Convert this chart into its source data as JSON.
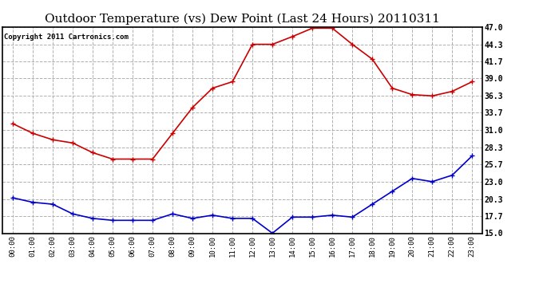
{
  "title": "Outdoor Temperature (vs) Dew Point (Last 24 Hours) 20110311",
  "copyright": "Copyright 2011 Cartronics.com",
  "hours": [
    "00:00",
    "01:00",
    "02:00",
    "03:00",
    "04:00",
    "05:00",
    "06:00",
    "07:00",
    "08:00",
    "09:00",
    "10:00",
    "11:00",
    "12:00",
    "13:00",
    "14:00",
    "15:00",
    "16:00",
    "17:00",
    "18:00",
    "19:00",
    "20:00",
    "21:00",
    "22:00",
    "23:00"
  ],
  "temp": [
    32.0,
    30.5,
    29.5,
    29.0,
    27.5,
    26.5,
    26.5,
    26.5,
    30.5,
    34.5,
    37.5,
    38.5,
    44.3,
    44.3,
    45.5,
    46.8,
    46.8,
    44.3,
    42.0,
    37.5,
    36.5,
    36.3,
    37.0,
    38.5
  ],
  "dew": [
    20.5,
    19.8,
    19.5,
    18.0,
    17.3,
    17.0,
    17.0,
    17.0,
    18.0,
    17.3,
    17.8,
    17.3,
    17.3,
    15.0,
    17.5,
    17.5,
    17.8,
    17.5,
    19.5,
    21.5,
    23.5,
    23.0,
    24.0,
    27.0
  ],
  "temp_color": "#cc0000",
  "dew_color": "#0000cc",
  "bg_color": "#ffffff",
  "plot_bg_color": "#ffffff",
  "grid_color": "#b0b0b0",
  "ylim": [
    15.0,
    47.0
  ],
  "yticks": [
    15.0,
    17.7,
    20.3,
    23.0,
    25.7,
    28.3,
    31.0,
    33.7,
    36.3,
    39.0,
    41.7,
    44.3,
    47.0
  ],
  "title_fontsize": 11,
  "copyright_fontsize": 6.5,
  "marker": "+",
  "marker_size": 5,
  "line_width": 1.2
}
